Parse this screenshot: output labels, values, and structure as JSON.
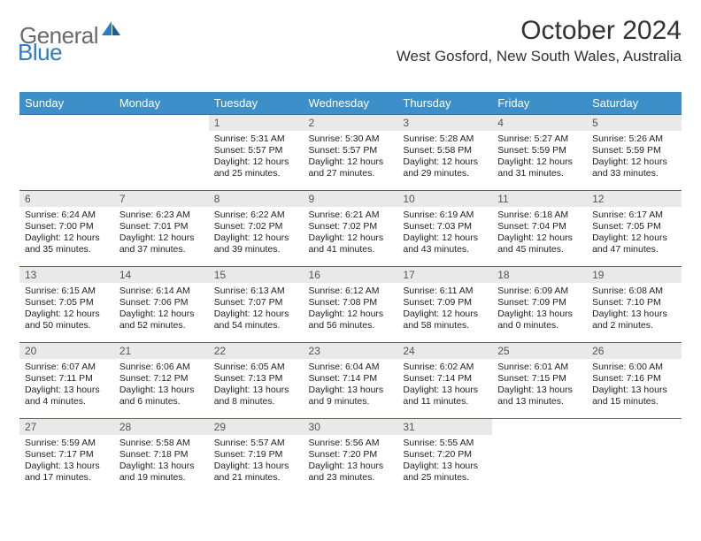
{
  "brand": {
    "part1": "General",
    "part2": "Blue"
  },
  "title": "October 2024",
  "location": "West Gosford, New South Wales, Australia",
  "colors": {
    "header_bg": "#3d8fc9",
    "header_text": "#ffffff",
    "row_border": "#3d6a8f",
    "daynum_bg": "#e9e9e9",
    "brand_gray": "#6a6a6a",
    "brand_blue": "#2d7dc5"
  },
  "day_headers": [
    "Sunday",
    "Monday",
    "Tuesday",
    "Wednesday",
    "Thursday",
    "Friday",
    "Saturday"
  ],
  "weeks": [
    [
      null,
      null,
      {
        "n": "1",
        "sr": "Sunrise: 5:31 AM",
        "ss": "Sunset: 5:57 PM",
        "d1": "Daylight: 12 hours",
        "d2": "and 25 minutes."
      },
      {
        "n": "2",
        "sr": "Sunrise: 5:30 AM",
        "ss": "Sunset: 5:57 PM",
        "d1": "Daylight: 12 hours",
        "d2": "and 27 minutes."
      },
      {
        "n": "3",
        "sr": "Sunrise: 5:28 AM",
        "ss": "Sunset: 5:58 PM",
        "d1": "Daylight: 12 hours",
        "d2": "and 29 minutes."
      },
      {
        "n": "4",
        "sr": "Sunrise: 5:27 AM",
        "ss": "Sunset: 5:59 PM",
        "d1": "Daylight: 12 hours",
        "d2": "and 31 minutes."
      },
      {
        "n": "5",
        "sr": "Sunrise: 5:26 AM",
        "ss": "Sunset: 5:59 PM",
        "d1": "Daylight: 12 hours",
        "d2": "and 33 minutes."
      }
    ],
    [
      {
        "n": "6",
        "sr": "Sunrise: 6:24 AM",
        "ss": "Sunset: 7:00 PM",
        "d1": "Daylight: 12 hours",
        "d2": "and 35 minutes."
      },
      {
        "n": "7",
        "sr": "Sunrise: 6:23 AM",
        "ss": "Sunset: 7:01 PM",
        "d1": "Daylight: 12 hours",
        "d2": "and 37 minutes."
      },
      {
        "n": "8",
        "sr": "Sunrise: 6:22 AM",
        "ss": "Sunset: 7:02 PM",
        "d1": "Daylight: 12 hours",
        "d2": "and 39 minutes."
      },
      {
        "n": "9",
        "sr": "Sunrise: 6:21 AM",
        "ss": "Sunset: 7:02 PM",
        "d1": "Daylight: 12 hours",
        "d2": "and 41 minutes."
      },
      {
        "n": "10",
        "sr": "Sunrise: 6:19 AM",
        "ss": "Sunset: 7:03 PM",
        "d1": "Daylight: 12 hours",
        "d2": "and 43 minutes."
      },
      {
        "n": "11",
        "sr": "Sunrise: 6:18 AM",
        "ss": "Sunset: 7:04 PM",
        "d1": "Daylight: 12 hours",
        "d2": "and 45 minutes."
      },
      {
        "n": "12",
        "sr": "Sunrise: 6:17 AM",
        "ss": "Sunset: 7:05 PM",
        "d1": "Daylight: 12 hours",
        "d2": "and 47 minutes."
      }
    ],
    [
      {
        "n": "13",
        "sr": "Sunrise: 6:15 AM",
        "ss": "Sunset: 7:05 PM",
        "d1": "Daylight: 12 hours",
        "d2": "and 50 minutes."
      },
      {
        "n": "14",
        "sr": "Sunrise: 6:14 AM",
        "ss": "Sunset: 7:06 PM",
        "d1": "Daylight: 12 hours",
        "d2": "and 52 minutes."
      },
      {
        "n": "15",
        "sr": "Sunrise: 6:13 AM",
        "ss": "Sunset: 7:07 PM",
        "d1": "Daylight: 12 hours",
        "d2": "and 54 minutes."
      },
      {
        "n": "16",
        "sr": "Sunrise: 6:12 AM",
        "ss": "Sunset: 7:08 PM",
        "d1": "Daylight: 12 hours",
        "d2": "and 56 minutes."
      },
      {
        "n": "17",
        "sr": "Sunrise: 6:11 AM",
        "ss": "Sunset: 7:09 PM",
        "d1": "Daylight: 12 hours",
        "d2": "and 58 minutes."
      },
      {
        "n": "18",
        "sr": "Sunrise: 6:09 AM",
        "ss": "Sunset: 7:09 PM",
        "d1": "Daylight: 13 hours",
        "d2": "and 0 minutes."
      },
      {
        "n": "19",
        "sr": "Sunrise: 6:08 AM",
        "ss": "Sunset: 7:10 PM",
        "d1": "Daylight: 13 hours",
        "d2": "and 2 minutes."
      }
    ],
    [
      {
        "n": "20",
        "sr": "Sunrise: 6:07 AM",
        "ss": "Sunset: 7:11 PM",
        "d1": "Daylight: 13 hours",
        "d2": "and 4 minutes."
      },
      {
        "n": "21",
        "sr": "Sunrise: 6:06 AM",
        "ss": "Sunset: 7:12 PM",
        "d1": "Daylight: 13 hours",
        "d2": "and 6 minutes."
      },
      {
        "n": "22",
        "sr": "Sunrise: 6:05 AM",
        "ss": "Sunset: 7:13 PM",
        "d1": "Daylight: 13 hours",
        "d2": "and 8 minutes."
      },
      {
        "n": "23",
        "sr": "Sunrise: 6:04 AM",
        "ss": "Sunset: 7:14 PM",
        "d1": "Daylight: 13 hours",
        "d2": "and 9 minutes."
      },
      {
        "n": "24",
        "sr": "Sunrise: 6:02 AM",
        "ss": "Sunset: 7:14 PM",
        "d1": "Daylight: 13 hours",
        "d2": "and 11 minutes."
      },
      {
        "n": "25",
        "sr": "Sunrise: 6:01 AM",
        "ss": "Sunset: 7:15 PM",
        "d1": "Daylight: 13 hours",
        "d2": "and 13 minutes."
      },
      {
        "n": "26",
        "sr": "Sunrise: 6:00 AM",
        "ss": "Sunset: 7:16 PM",
        "d1": "Daylight: 13 hours",
        "d2": "and 15 minutes."
      }
    ],
    [
      {
        "n": "27",
        "sr": "Sunrise: 5:59 AM",
        "ss": "Sunset: 7:17 PM",
        "d1": "Daylight: 13 hours",
        "d2": "and 17 minutes."
      },
      {
        "n": "28",
        "sr": "Sunrise: 5:58 AM",
        "ss": "Sunset: 7:18 PM",
        "d1": "Daylight: 13 hours",
        "d2": "and 19 minutes."
      },
      {
        "n": "29",
        "sr": "Sunrise: 5:57 AM",
        "ss": "Sunset: 7:19 PM",
        "d1": "Daylight: 13 hours",
        "d2": "and 21 minutes."
      },
      {
        "n": "30",
        "sr": "Sunrise: 5:56 AM",
        "ss": "Sunset: 7:20 PM",
        "d1": "Daylight: 13 hours",
        "d2": "and 23 minutes."
      },
      {
        "n": "31",
        "sr": "Sunrise: 5:55 AM",
        "ss": "Sunset: 7:20 PM",
        "d1": "Daylight: 13 hours",
        "d2": "and 25 minutes."
      },
      null,
      null
    ]
  ]
}
